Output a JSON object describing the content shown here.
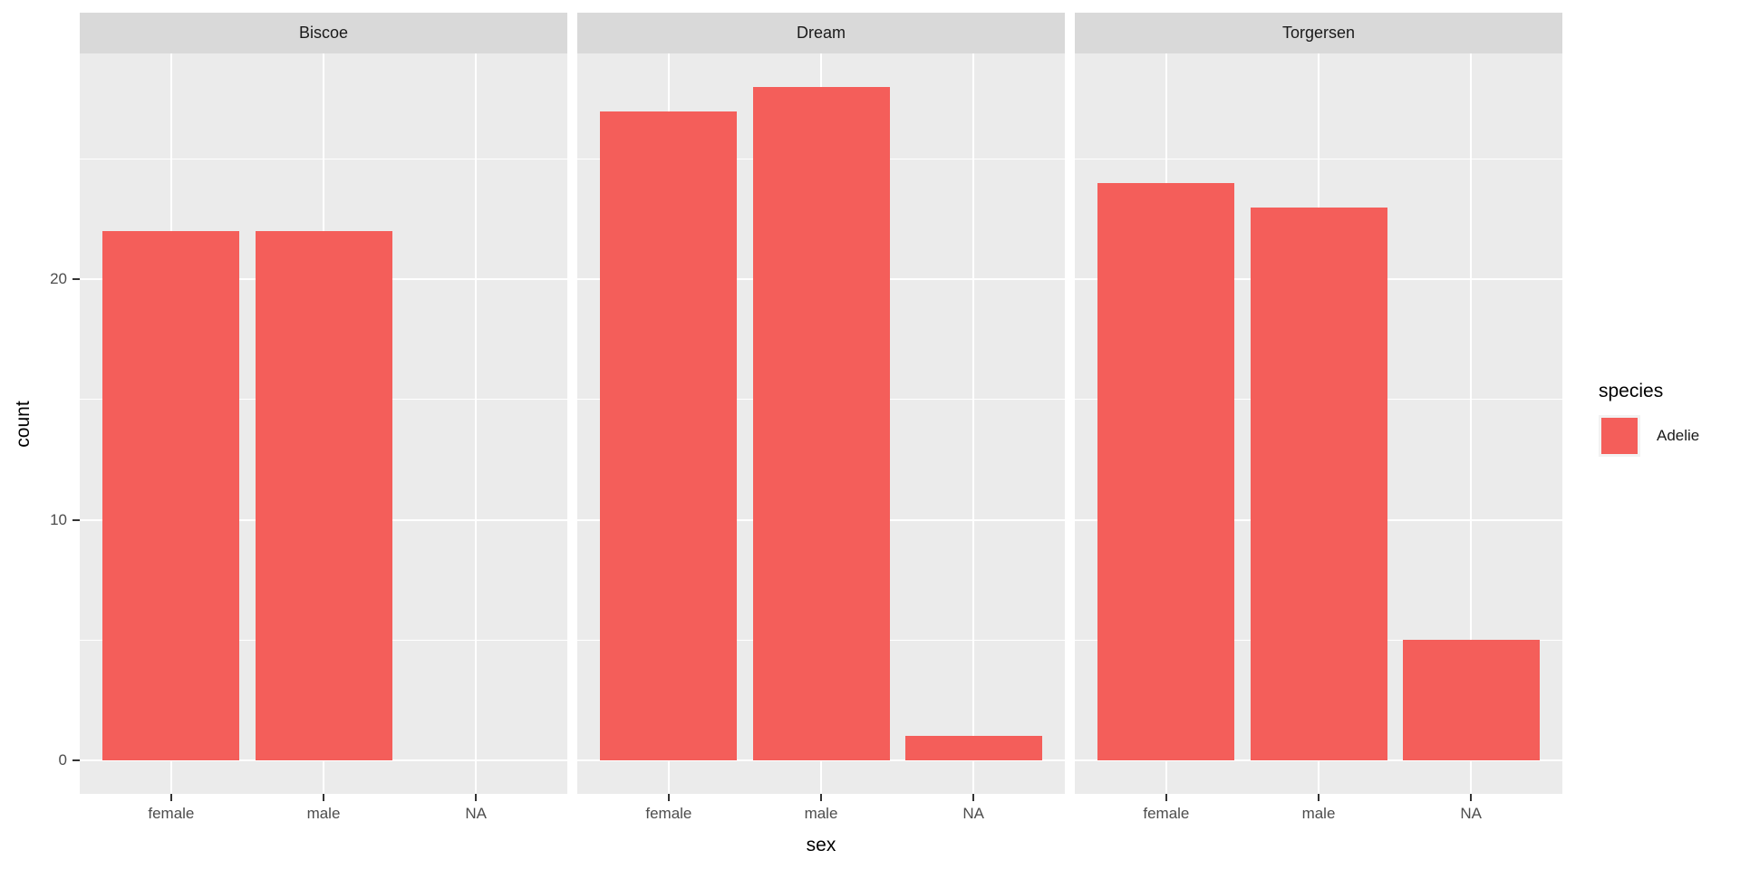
{
  "chart_data": {
    "type": "bar",
    "title": "",
    "xlabel": "sex",
    "ylabel": "count",
    "categories": [
      "female",
      "male",
      "NA"
    ],
    "facets": [
      {
        "label": "Biscoe",
        "values": [
          22,
          22,
          0
        ]
      },
      {
        "label": "Dream",
        "values": [
          27,
          28,
          1
        ]
      },
      {
        "label": "Torgersen",
        "values": [
          24,
          23,
          5
        ]
      }
    ],
    "series_name": "Adelie",
    "legend_title": "species",
    "y_ticks": [
      0,
      10,
      20
    ],
    "y_minor_ticks": [
      5,
      15,
      25
    ],
    "ylim": [
      -1.4,
      29.4
    ],
    "legend_position": "right",
    "grid": "on",
    "colors": {
      "bar_fill": "#f45e5a",
      "panel_background": "#ebebeb",
      "strip_background": "#d9d9d9",
      "gridline": "#ffffff",
      "tick_label": "#4d4d4d",
      "axis_title": "#000000",
      "legend_key_background": "#f2f2f2"
    }
  }
}
